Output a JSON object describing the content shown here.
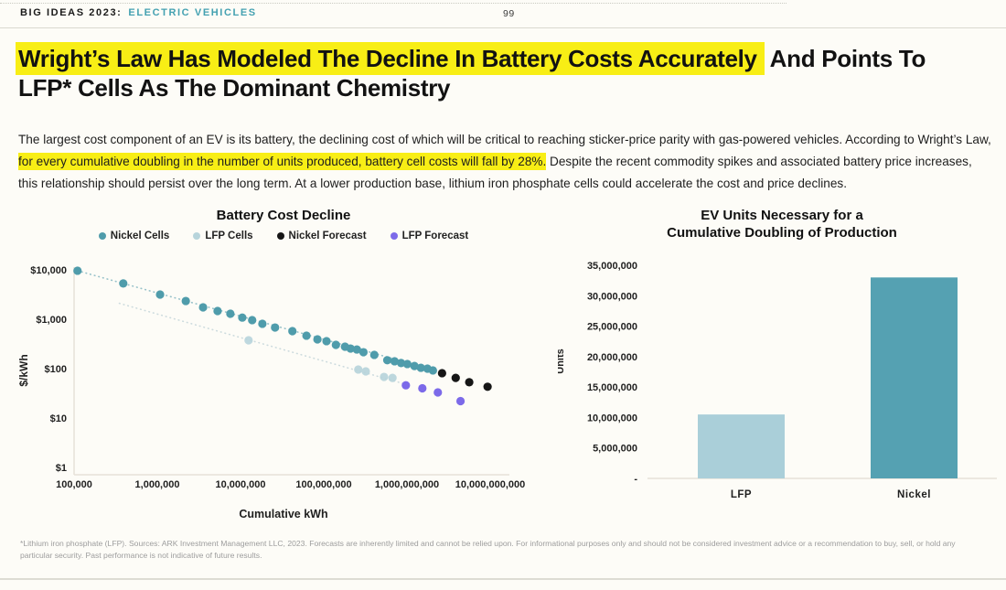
{
  "header": {
    "brand": "BIG IDEAS 2023:",
    "section": "ELECTRIC VEHICLES",
    "page_number": "99"
  },
  "title": {
    "highlight": "Wright’s Law Has Modeled The Decline In Battery Costs Accurately",
    "rest": " And Points To",
    "line2": "LFP* Cells As The Dominant Chemistry"
  },
  "body": {
    "pre": "The largest cost component of an EV is its battery, the declining cost of which will be critical to reaching sticker-price parity with gas-powered vehicles. According to Wright’s Law, ",
    "highlight": "for every cumulative doubling in the number of units produced, battery cell costs will fall by 28%.",
    "post": " Despite the recent commodity spikes and associated battery price increases, this relationship should persist over the long term. At a lower production base, lithium iron phosphate cells could accelerate the cost and price declines."
  },
  "colors": {
    "accent_teal": "#44a1b1",
    "highlight_yellow": "#f8ee15",
    "axis_line": "#e7e2d9"
  },
  "chart_data": [
    {
      "type": "scatter",
      "title": "Battery Cost Decline",
      "xlabel": "Cumulative kWh",
      "ylabel": "$/kWh",
      "x_scale": "log",
      "y_scale": "log",
      "xlim": [
        100000,
        10000000000
      ],
      "ylim": [
        1,
        10000
      ],
      "x_tick_values": [
        100000,
        1000000,
        10000000,
        100000000,
        1000000000,
        10000000000
      ],
      "x_tick_labels": [
        "100,000",
        "1,000,000",
        "10,000,000",
        "100,000,000",
        "1,000,000,000",
        "10,000,000,000"
      ],
      "y_tick_values": [
        10000,
        1000,
        100,
        10,
        1
      ],
      "y_tick_labels": [
        "$10,000",
        "$1,000",
        "$100",
        "$10",
        "$1"
      ],
      "legend_position": "top",
      "grid": false,
      "series": [
        {
          "name": "LFP Cells",
          "color": "#b7d4db",
          "opacity": 0.9,
          "points": [
            [
              12500000,
              375
            ],
            [
              260000000,
              96
            ],
            [
              320000000,
              88
            ],
            [
              530000000,
              68
            ],
            [
              670000000,
              65
            ]
          ]
        },
        {
          "name": "Nickel Cells",
          "color": "#4f9cab",
          "opacity": 1,
          "points": [
            [
              110000,
              9600
            ],
            [
              390000,
              5300
            ],
            [
              1080000,
              3160
            ],
            [
              2200000,
              2340
            ],
            [
              3550000,
              1740
            ],
            [
              5300000,
              1470
            ],
            [
              7550000,
              1290
            ],
            [
              10500000,
              1080
            ],
            [
              13800000,
              960
            ],
            [
              18300000,
              810
            ],
            [
              26000000,
              680
            ],
            [
              42000000,
              575
            ],
            [
              62000000,
              465
            ],
            [
              84000000,
              392
            ],
            [
              108000000,
              360
            ],
            [
              140000000,
              303
            ],
            [
              180000000,
              278
            ],
            [
              210000000,
              255
            ],
            [
              250000000,
              244
            ],
            [
              300000000,
              215
            ],
            [
              405000000,
              190
            ],
            [
              580000000,
              148
            ],
            [
              710000000,
              141
            ],
            [
              850000000,
              130
            ],
            [
              1010000000,
              124
            ],
            [
              1230000000,
              113
            ],
            [
              1470000000,
              104
            ],
            [
              1760000000,
              100
            ],
            [
              2050000000,
              92
            ]
          ]
        },
        {
          "name": "LFP Forecast",
          "color": "#7c6ae9",
          "opacity": 1,
          "points": [
            [
              970000000,
              46
            ],
            [
              1530000000,
              40
            ],
            [
              2350000000,
              33
            ],
            [
              4400000000,
              22
            ]
          ]
        },
        {
          "name": "Nickel Forecast",
          "color": "#161616",
          "opacity": 1,
          "points": [
            [
              2640000000,
              81
            ],
            [
              3850000000,
              65
            ],
            [
              5600000000,
              53
            ],
            [
              9300000000,
              43
            ]
          ]
        }
      ],
      "legend_order": [
        "Nickel Cells",
        "LFP Cells",
        "Nickel Forecast",
        "LFP Forecast"
      ],
      "trendlines": [
        {
          "name": "nickel-trend",
          "color": "#85b7c1",
          "opacity": 0.85,
          "from": [
            110000,
            9600
          ],
          "to": [
            2050000000,
            95
          ]
        },
        {
          "name": "lfp-trend",
          "color": "#b9ced4",
          "opacity": 0.7,
          "from": [
            350000,
            2100
          ],
          "to": [
            900000000,
            50
          ]
        }
      ]
    },
    {
      "type": "bar",
      "title_line1": "EV Units Necessary for a",
      "title_line2": "Cumulative Doubling of Production",
      "ylabel": "Units",
      "categories": [
        "LFP",
        "Nickel"
      ],
      "values": [
        10500000,
        33000000
      ],
      "bar_colors": [
        "#aacfd9",
        "#55a1b2"
      ],
      "ylim": [
        0,
        35000000
      ],
      "y_tick_values": [
        35000000,
        30000000,
        25000000,
        20000000,
        15000000,
        10000000,
        5000000,
        0
      ],
      "y_tick_labels": [
        "35,000,000",
        "30,000,000",
        "25,000,000",
        "20,000,000",
        "15,000,000",
        "10,000,000",
        "5,000,000",
        "-"
      ],
      "grid": false
    }
  ],
  "footnote": "*Lithium iron phosphate (LFP). Sources: ARK Investment Management LLC, 2023. Forecasts are inherently limited and cannot be relied upon. For informational purposes only and should not be considered investment advice or a recommendation to buy, sell, or hold any particular security. Past performance is not indicative of future results."
}
